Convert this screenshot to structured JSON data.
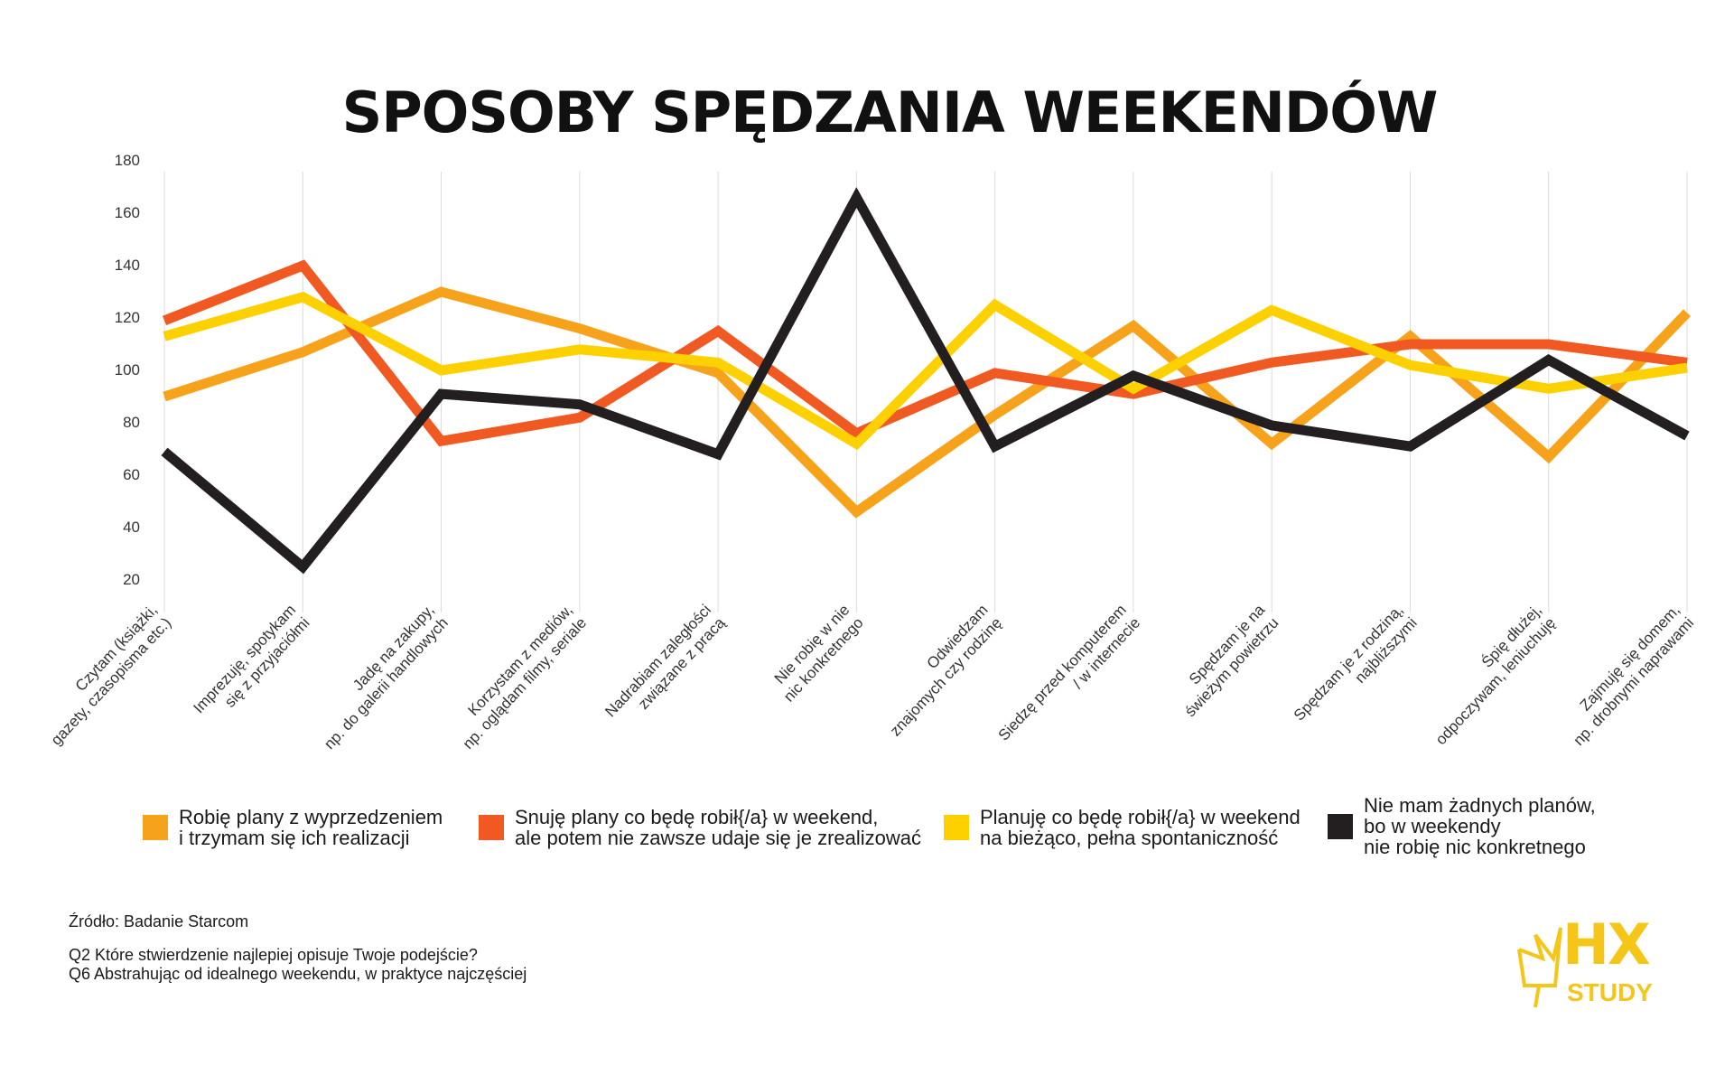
{
  "title": "SPOSOBY SPĘDZANIA WEEKENDÓW",
  "chart_data": {
    "type": "line",
    "ylim": [
      0,
      180
    ],
    "yticks": [
      20,
      40,
      60,
      80,
      100,
      120,
      140,
      160,
      180
    ],
    "categories": [
      "Czytam (książki,\ngazety, czasopisma etc.)",
      "Imprezuję, spotykam\nsię z przyjaciółmi",
      "Jadę na zakupy,\nnp. do galerii handlowych",
      "Korzystam z mediów,\nnp. oglądam filmy, seriale",
      "Nadrabiam zaległości\nzwiązane z pracą",
      "Nie robię w nie\nnic konkretnego",
      "Odwiedzam\nznajomych czy rodzinę",
      "Siedzę przed komputerem\n/ w internecie",
      "Spędzam je na\nświeżym powietrzu",
      "Spędzam je z rodziną,\nnajbliższymi",
      "Śpię dłużej,\nodpoczywam, leniuchuję",
      "Zajmuję się domem,\nnp. drobnymi naprawami"
    ],
    "series": [
      {
        "name": "Robię plany z wyprzedzeniem\ni trzymam się ich realizacji",
        "color": "#F7A21B",
        "values": [
          90,
          107,
          130,
          116,
          99,
          46,
          83,
          117,
          72,
          113,
          67,
          122
        ]
      },
      {
        "name": "Snuję plany co będę robił{/a} w weekend,\nale potem nie zawsze udaje się je zrealizować",
        "color": "#F05A22",
        "values": [
          119,
          140,
          73,
          82,
          115,
          76,
          99,
          91,
          103,
          110,
          110,
          103
        ]
      },
      {
        "name": "Planuję co będę robił{/a} w weekend\nna bieżąco, pełna spontaniczność",
        "color": "#FDD100",
        "values": [
          113,
          128,
          100,
          108,
          103,
          72,
          125,
          93,
          123,
          102,
          93,
          101
        ]
      },
      {
        "name": "Nie mam żadnych planów,\nbo w weekendy\nnie robię nic konkretnego",
        "color": "#231F20",
        "values": [
          69,
          25,
          91,
          87,
          68,
          166,
          71,
          98,
          79,
          71,
          104,
          75
        ]
      }
    ]
  },
  "footer": {
    "source": "Źródło: Badanie Starcom",
    "questions": "Q2 Które stwierdzenie najlepiej opisuje Twoje podejście?\nQ6 Abstrahując od idealnego weekendu, w praktyce najczęściej"
  },
  "logo": {
    "main": "HX",
    "sub": "STUDY",
    "color": "#F5C518"
  }
}
